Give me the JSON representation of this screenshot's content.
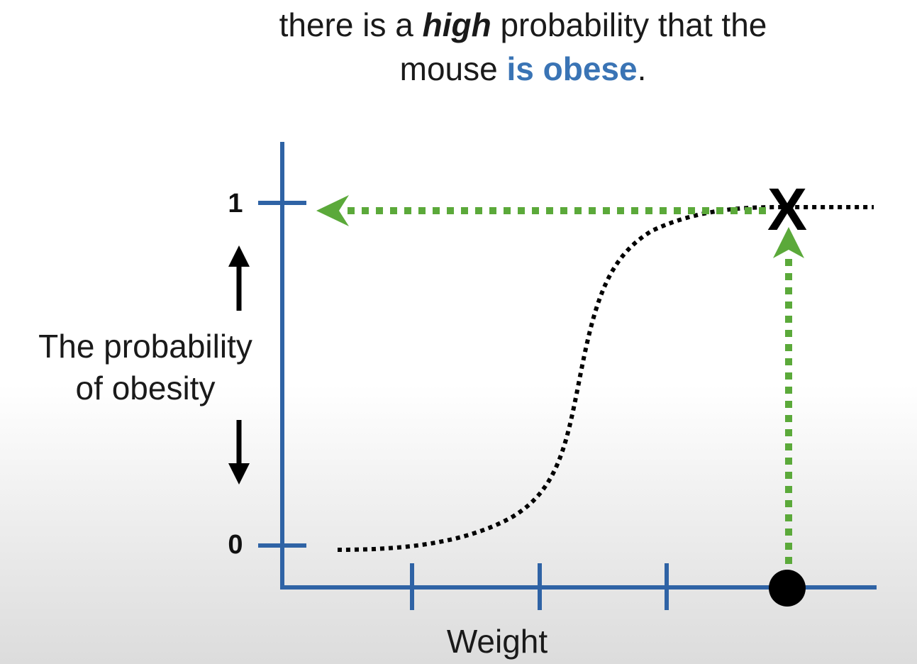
{
  "headline": {
    "line1_prefix": "there is a ",
    "line1_emphasis": "high",
    "line1_suffix": " probability that the",
    "line2_prefix": "mouse ",
    "line2_accent": "is obese",
    "line2_suffix": "."
  },
  "colors": {
    "axis": "#2f63a5",
    "accent_text": "#3a74b5",
    "guide_arrow": "#5ba93a",
    "curve": "#000000"
  },
  "axis_labels": {
    "y_line1": "The probability",
    "y_line2": "of obesity",
    "x": "Weight"
  },
  "y_ticks": {
    "top": "1",
    "bottom": "0"
  },
  "marker": {
    "label": "X"
  },
  "icons": [
    "up-arrow-icon",
    "down-arrow-icon",
    "left-arrowhead-icon",
    "up-arrowhead-icon",
    "data-point-dot"
  ]
}
